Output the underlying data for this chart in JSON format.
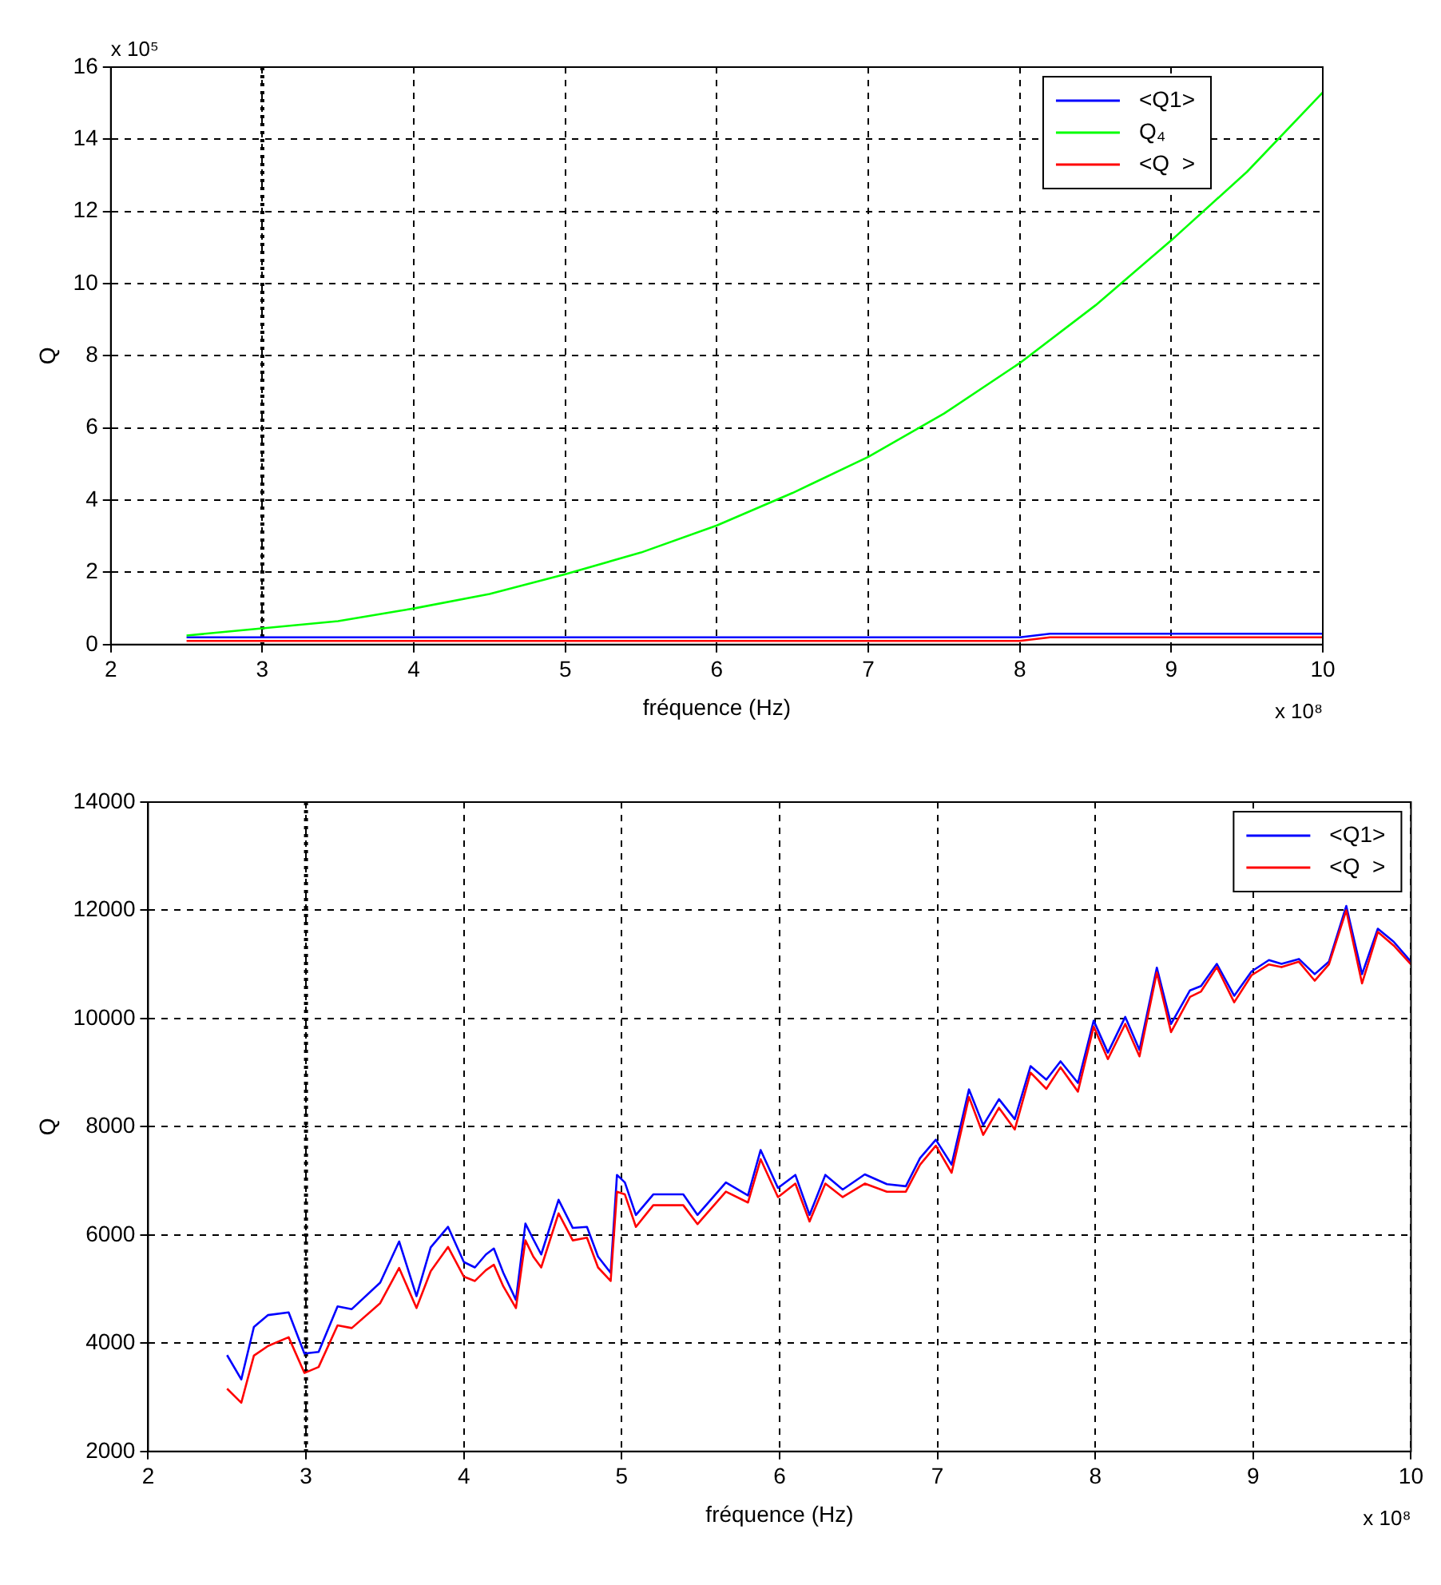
{
  "chart_data": [
    {
      "type": "line",
      "xlabel": "fréquence (Hz)",
      "ylabel": "Q",
      "xlim": [
        2,
        10
      ],
      "xticks": [
        2,
        3,
        4,
        5,
        6,
        7,
        8,
        9,
        10
      ],
      "ylim": [
        0,
        16
      ],
      "yticks": [
        0,
        2,
        4,
        6,
        8,
        10,
        12,
        14,
        16
      ],
      "grid": true,
      "legend": "top right",
      "marker": "none",
      "annotations": [
        "x 10⁵",
        "x 10⁸"
      ],
      "ref_lines": [
        {
          "axis": "x",
          "value": 3,
          "color": "#000000",
          "line_style": "dotted"
        }
      ],
      "x": [
        2.5,
        3,
        4,
        5,
        6,
        7,
        8,
        8.2,
        9,
        10
      ],
      "series": [
        {
          "name": "<Q1>",
          "color": "#0000ff",
          "values": [
            0.2,
            0.2,
            0.2,
            0.2,
            0.2,
            0.2,
            0.2,
            0.3,
            0.3,
            0.3
          ]
        },
        {
          "name": "Q₄",
          "color": "#00ff00",
          "x": [
            2.5,
            3,
            3.5,
            4,
            4.5,
            5,
            5.5,
            6,
            6.5,
            7,
            7.5,
            8,
            8.5,
            9,
            9.5,
            10
          ],
          "values": [
            0.25,
            0.45,
            0.65,
            1.0,
            1.4,
            1.95,
            2.55,
            3.3,
            4.2,
            5.2,
            6.4,
            7.8,
            9.4,
            11.2,
            13.1,
            15.3
          ]
        },
        {
          "name": "<Q  >",
          "color": "#ff0000",
          "values": [
            0.1,
            0.1,
            0.1,
            0.1,
            0.1,
            0.1,
            0.1,
            0.2,
            0.2,
            0.2
          ]
        }
      ]
    },
    {
      "type": "line",
      "xlabel": "fréquence (Hz)",
      "ylabel": "Q",
      "xlim": [
        2,
        10
      ],
      "xticks": [
        2,
        3,
        4,
        5,
        6,
        7,
        8,
        9,
        10
      ],
      "ylim": [
        2000,
        14000
      ],
      "yticks": [
        2000,
        4000,
        6000,
        8000,
        10000,
        12000,
        14000
      ],
      "grid": true,
      "legend": "top right",
      "marker": "none",
      "annotations": [
        "x 10⁸"
      ],
      "ref_lines": [
        {
          "axis": "x",
          "value": 3,
          "color": "#000000",
          "line_style": "dotted"
        }
      ],
      "x": [
        2.5,
        2.59,
        2.67,
        2.76,
        2.89,
        2.99,
        3.08,
        3.2,
        3.29,
        3.47,
        3.59,
        3.7,
        3.79,
        3.9,
        4.0,
        4.07,
        4.14,
        4.19,
        4.25,
        4.33,
        4.39,
        4.44,
        4.49,
        4.6,
        4.69,
        4.78,
        4.85,
        4.93,
        4.97,
        5.02,
        5.09,
        5.2,
        5.39,
        5.48,
        5.66,
        5.8,
        5.88,
        5.99,
        6.1,
        6.19,
        6.29,
        6.4,
        6.54,
        6.68,
        6.8,
        6.89,
        6.99,
        7.09,
        7.2,
        7.29,
        7.39,
        7.49,
        7.59,
        7.69,
        7.78,
        7.89,
        7.99,
        8.08,
        8.19,
        8.28,
        8.39,
        8.48,
        8.6,
        8.67,
        8.77,
        8.88,
        8.99,
        9.1,
        9.18,
        9.29,
        9.39,
        9.48,
        9.59,
        9.69,
        9.79,
        9.89,
        10.0
      ],
      "series": [
        {
          "name": "<Q1>",
          "color": "#0000ff",
          "values": [
            3780,
            3330,
            4300,
            4520,
            4570,
            3810,
            3840,
            4680,
            4630,
            5120,
            5880,
            4870,
            5770,
            6150,
            5500,
            5400,
            5640,
            5750,
            5300,
            4800,
            6210,
            5920,
            5640,
            6650,
            6130,
            6150,
            5600,
            5300,
            7110,
            6970,
            6370,
            6750,
            6750,
            6370,
            6970,
            6730,
            7570,
            6870,
            7110,
            6370,
            7110,
            6840,
            7120,
            6940,
            6900,
            7420,
            7760,
            7300,
            8690,
            8030,
            8510,
            8140,
            9120,
            8870,
            9210,
            8810,
            9960,
            9370,
            10030,
            9420,
            10940,
            9900,
            10520,
            10600,
            11010,
            10420,
            10870,
            11080,
            11010,
            11100,
            10820,
            11050,
            12080,
            10820,
            11660,
            11420,
            11050
          ]
        },
        {
          "name": "<Q  >",
          "color": "#ff0000",
          "values": [
            3160,
            2900,
            3770,
            3950,
            4110,
            3450,
            3560,
            4330,
            4280,
            4740,
            5390,
            4650,
            5330,
            5780,
            5230,
            5150,
            5350,
            5450,
            5050,
            4650,
            5900,
            5600,
            5400,
            6400,
            5900,
            5950,
            5400,
            5150,
            6800,
            6750,
            6150,
            6550,
            6550,
            6200,
            6800,
            6600,
            7400,
            6700,
            6950,
            6250,
            6950,
            6700,
            6950,
            6800,
            6800,
            7300,
            7650,
            7150,
            8550,
            7850,
            8350,
            7950,
            9000,
            8700,
            9100,
            8650,
            9850,
            9250,
            9900,
            9300,
            10850,
            9750,
            10400,
            10500,
            10950,
            10300,
            10800,
            11000,
            10950,
            11050,
            10700,
            11000,
            12000,
            10650,
            11600,
            11350,
            11000
          ]
        }
      ]
    }
  ]
}
